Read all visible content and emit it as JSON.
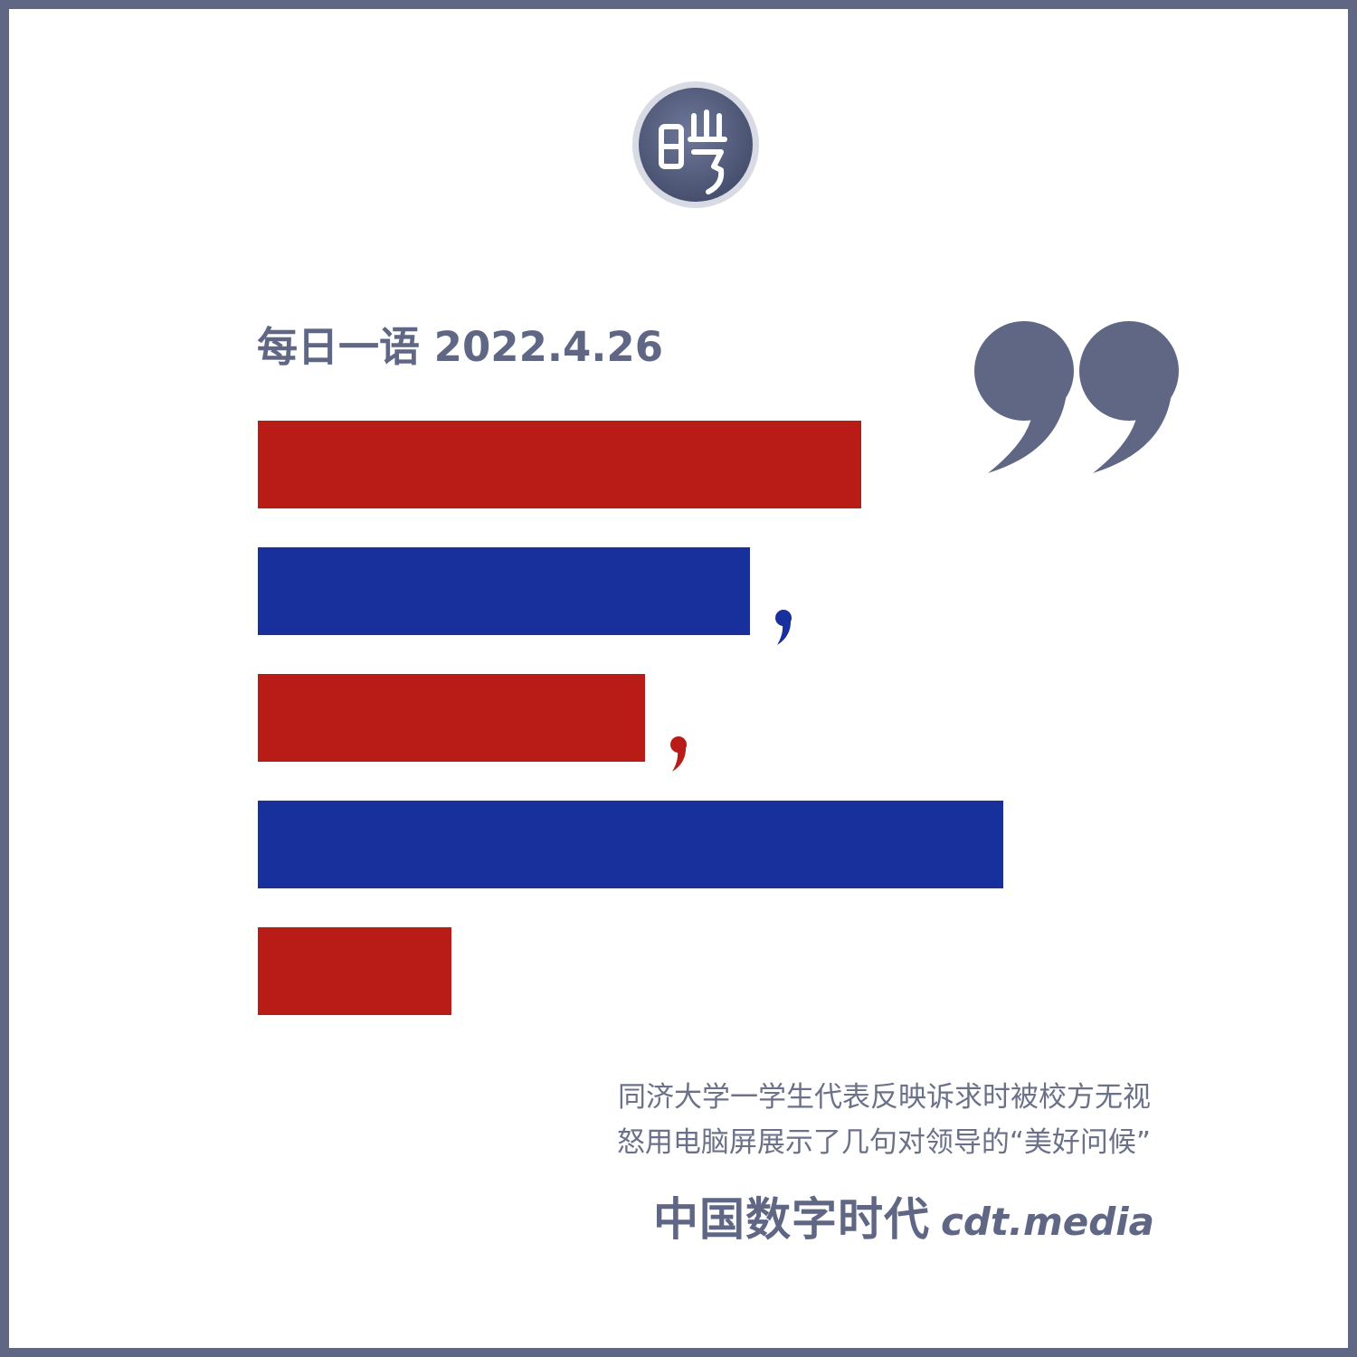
{
  "logo": {
    "icon": "seal-logo-icon",
    "glyph": "暵"
  },
  "header": {
    "title": "每日一语 2022.4.26"
  },
  "decoration": {
    "quote_icon": "closing-quote-icon"
  },
  "redacted_lines": [
    {
      "color": "#b91c16",
      "fraction": 0.81
    },
    {
      "color": "#17309b",
      "fraction": 0.66,
      "trailing_comma": true
    },
    {
      "color": "#b91c16",
      "fraction": 0.52,
      "trailing_comma": true
    },
    {
      "color": "#17309b",
      "fraction": 1.0
    },
    {
      "color": "#b91c16",
      "fraction": 0.26
    }
  ],
  "caption": {
    "line1": "同济大学一学生代表反映诉求时被校方无视",
    "line2": "怒用电脑屏展示了几句对领导的“美好问候”"
  },
  "brand": {
    "name_cn": "中国数字时代",
    "site": "cdt.media"
  },
  "colors": {
    "frame": "#5f6785",
    "red": "#b91c16",
    "blue": "#17309b",
    "text": "#5f6785"
  }
}
